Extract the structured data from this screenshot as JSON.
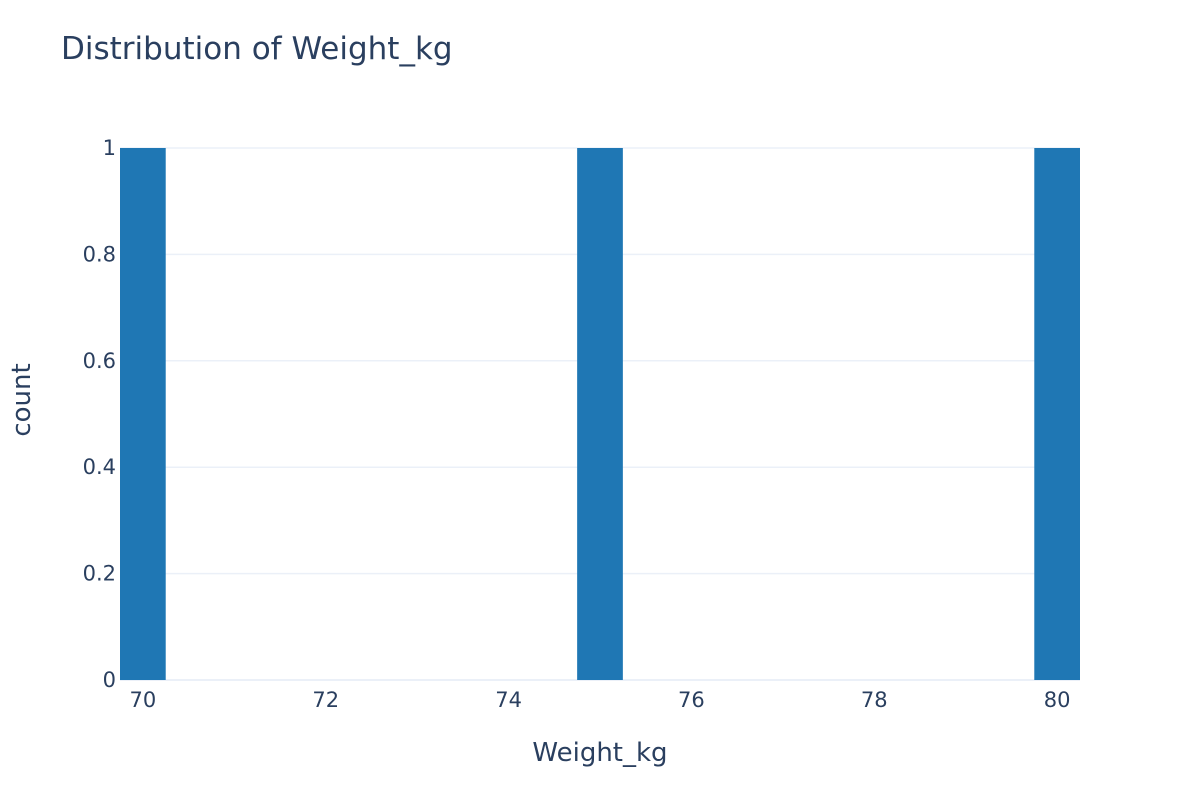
{
  "chart_data": {
    "type": "bar",
    "title": "Distribution of Weight_kg",
    "xlabel": "Weight_kg",
    "ylabel": "count",
    "bar_color": "#1f77b4",
    "grid_color": "#ebf0f8",
    "text_color": "#2a3f5f",
    "bin_width": 0.5,
    "xlim": [
      69.75,
      80.25
    ],
    "ylim": [
      0,
      1
    ],
    "x_ticks": [
      70,
      72,
      74,
      76,
      78,
      80
    ],
    "y_ticks": [
      0,
      0.2,
      0.4,
      0.6,
      0.8,
      1
    ],
    "y_tick_labels": [
      "0",
      "0.2",
      "0.4",
      "0.6",
      "0.8",
      "1"
    ],
    "grid": true,
    "bins": [
      {
        "x": 70,
        "count": 1
      },
      {
        "x": 75,
        "count": 1
      },
      {
        "x": 80,
        "count": 1
      }
    ]
  }
}
